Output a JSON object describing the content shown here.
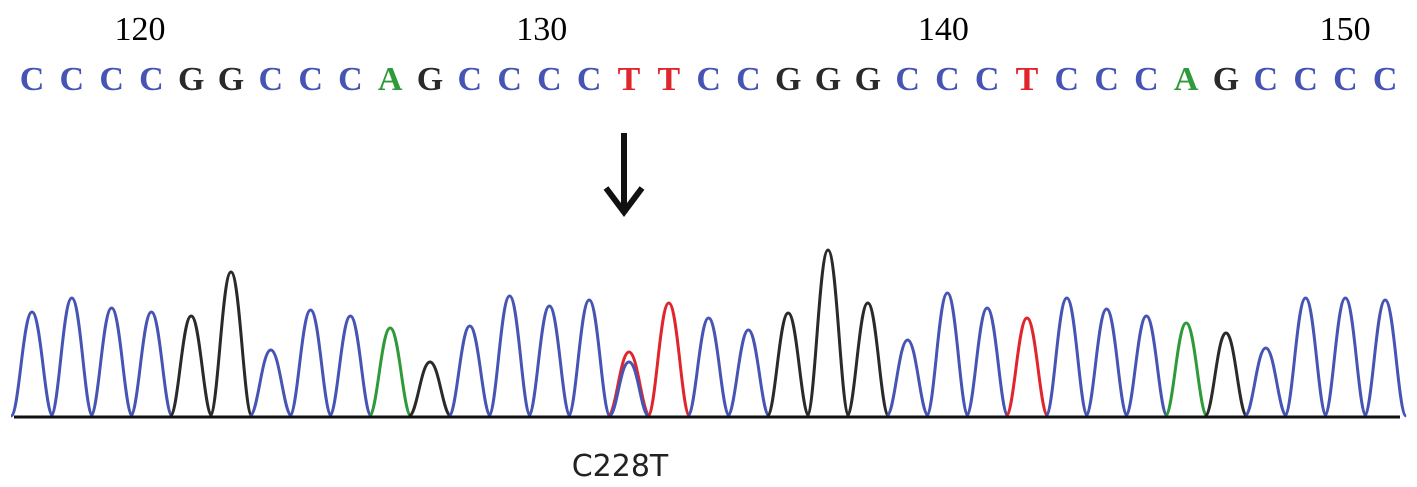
{
  "positions": [
    120,
    130,
    140,
    150
  ],
  "sequence": [
    "C",
    "C",
    "C",
    "C",
    "G",
    "G",
    "C",
    "C",
    "C",
    "A",
    "G",
    "C",
    "C",
    "C",
    "C",
    "T",
    "T",
    "C",
    "C",
    "G",
    "G",
    "G",
    "C",
    "C",
    "C",
    "T",
    "C",
    "C",
    "C",
    "A",
    "G",
    "C",
    "C",
    "C",
    "C"
  ],
  "base_colors": {
    "C": "#4654b4",
    "G": "#2a2a2a",
    "A": "#2f9a3a",
    "T": "#e0262c"
  },
  "mutation_label": "C228T"
}
